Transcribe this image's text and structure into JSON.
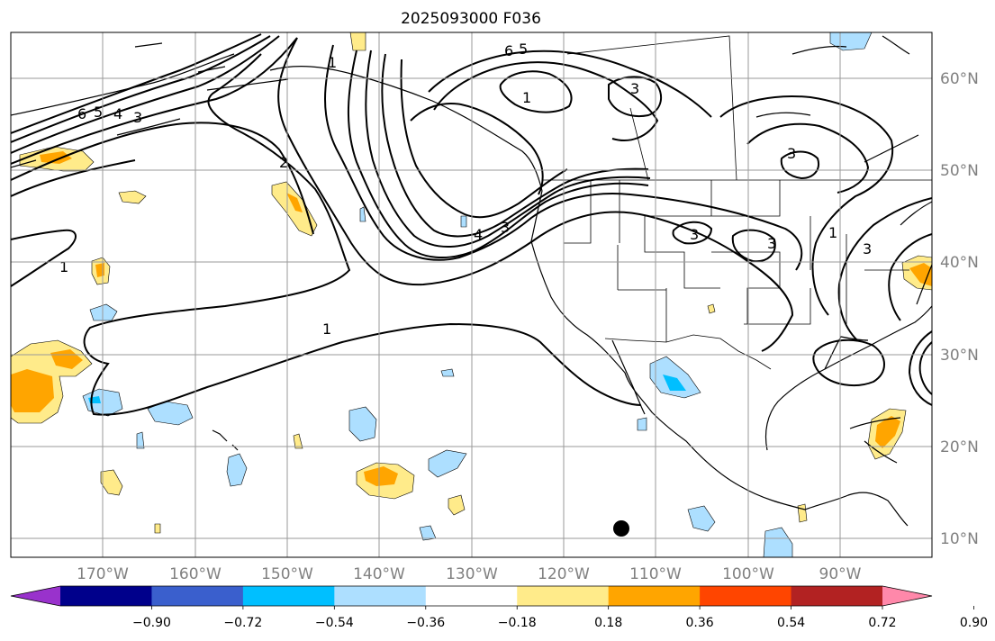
{
  "title": "2025093000 F036",
  "map": {
    "lon_ticks": [
      "170°W",
      "160°W",
      "150°W",
      "140°W",
      "130°W",
      "120°W",
      "110°W",
      "100°W",
      "90°W"
    ],
    "lat_ticks": [
      "60°N",
      "50°N",
      "40°N",
      "30°N",
      "20°N",
      "10°N"
    ],
    "contour_labels": [
      "6",
      "5",
      "4",
      "3",
      "1",
      "2",
      "1",
      "6",
      "5",
      "1",
      "3",
      "3",
      "4",
      "3",
      "3",
      "3",
      "1",
      "1",
      "3"
    ],
    "marker": "black dot"
  },
  "colorbar": {
    "ticks": [
      "−0.90",
      "−0.72",
      "−0.54",
      "−0.36",
      "−0.18",
      "0.18",
      "0.36",
      "0.54",
      "0.72",
      "0.90"
    ],
    "colors": [
      "#9932CC",
      "#00008B",
      "#3A5FCD",
      "#00BFFF",
      "#ADDFFF",
      "#FFFFFF",
      "#FFEB8A",
      "#FFA500",
      "#FF4500",
      "#B22222",
      "#FF88AA"
    ],
    "extend": "both"
  }
}
